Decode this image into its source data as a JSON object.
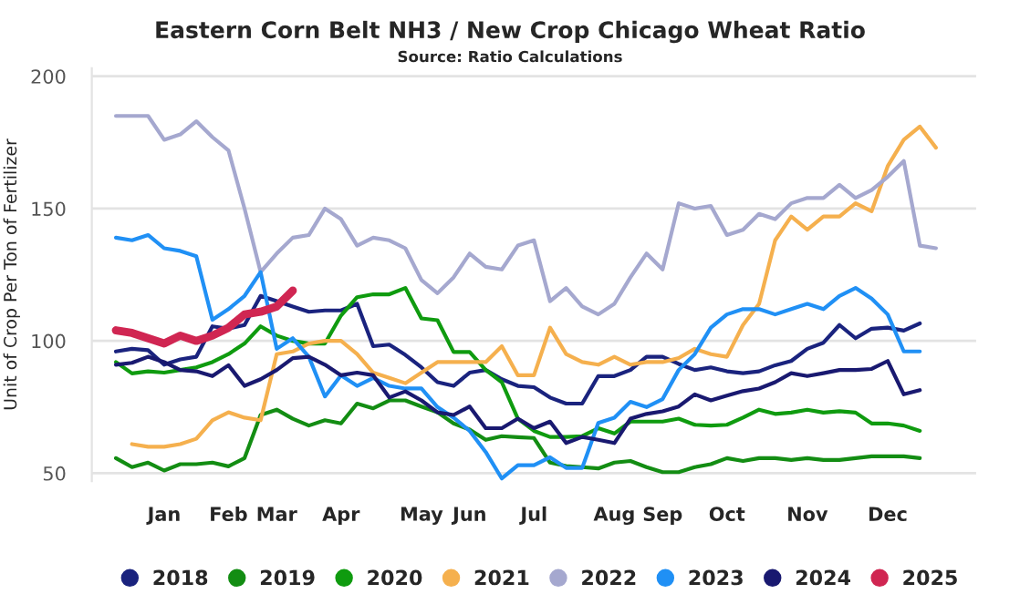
{
  "chart_data": {
    "type": "line",
    "title": "Eastern Corn Belt NH3 / New Crop Chicago Wheat Ratio",
    "subtitle": "Source: Ratio Calculations",
    "ylabel": "Unit of Crop Per Ton of Fertilizer",
    "categories": [
      null,
      null,
      null,
      "Jan",
      null,
      null,
      null,
      "Feb",
      null,
      null,
      "Mar",
      null,
      null,
      null,
      "Apr",
      null,
      null,
      null,
      null,
      "May",
      null,
      null,
      "Jun",
      null,
      null,
      null,
      "Jul",
      null,
      null,
      null,
      null,
      "Aug",
      null,
      null,
      "Sep",
      null,
      null,
      null,
      "Oct",
      null,
      null,
      null,
      null,
      "Nov",
      null,
      null,
      null,
      null,
      "Dec",
      null,
      null,
      null
    ],
    "series": [
      {
        "name": "2018",
        "color": "#1a237e",
        "values": [
          96,
          97,
          96.5,
          91,
          93,
          94,
          105.5,
          104.6,
          106,
          117,
          115,
          113,
          111,
          111.5,
          111.5,
          114,
          98,
          98.6,
          94.7,
          90,
          84.4,
          83,
          88,
          89,
          85.5,
          83,
          82.5,
          78.6,
          76.3,
          76.3,
          86.7,
          86.7,
          89,
          94,
          94,
          91.3,
          89,
          90,
          88.5,
          87.8,
          88.5,
          90.8,
          92.4,
          97,
          99.3,
          106,
          101,
          104.6,
          105,
          103.9,
          106.6,
          null
        ]
      },
      {
        "name": "2019",
        "color": "#138d13",
        "values": [
          55.7,
          52.3,
          54,
          51,
          53.4,
          53.4,
          54,
          52.6,
          55.7,
          72,
          74,
          70.6,
          68,
          70,
          68.8,
          76.3,
          74.5,
          77.5,
          77.5,
          75.2,
          73,
          68.8,
          66.5,
          62.6,
          64,
          63.6,
          63.3,
          54,
          52.7,
          52.3,
          51.8,
          54,
          54.6,
          52.3,
          50.4,
          50.4,
          52.3,
          53.4,
          55.7,
          54.6,
          55.7,
          55.7,
          55,
          55.7,
          55,
          55,
          55.7,
          56.4,
          56.4,
          56.4,
          55.7,
          null
        ]
      },
      {
        "name": "2020",
        "color": "#0f9b0f",
        "values": [
          92,
          87.7,
          88.5,
          88,
          89,
          90,
          92,
          95,
          99,
          105.5,
          102,
          100,
          99,
          99,
          109.6,
          116.5,
          117.6,
          117.6,
          120,
          108.5,
          107.8,
          95.8,
          95.8,
          89,
          84.4,
          70.6,
          66,
          63.7,
          63.7,
          64,
          67,
          65,
          69.5,
          69.5,
          69.5,
          70.6,
          68.3,
          68,
          68.3,
          71,
          74,
          72.4,
          72.9,
          74,
          72.9,
          73.4,
          72.9,
          68.8,
          68.8,
          68,
          66,
          null
        ]
      },
      {
        "name": "2021",
        "color": "#f5b04e",
        "values": [
          null,
          61,
          60,
          60,
          61,
          63,
          70,
          73,
          71,
          70,
          95,
          96,
          99,
          100,
          100,
          95,
          88,
          86,
          84,
          88,
          92,
          92,
          92,
          92,
          98,
          87,
          87,
          105,
          95,
          92,
          91,
          94,
          91,
          92,
          92,
          93.5,
          97,
          95,
          94,
          106,
          114,
          138,
          147,
          142,
          147,
          147,
          152,
          149,
          166,
          176,
          181,
          173
        ]
      },
      {
        "name": "2022",
        "color": "#a5a8cf",
        "values": [
          185,
          185,
          185,
          176,
          178,
          183,
          177,
          172,
          150,
          126,
          133,
          139,
          140,
          150,
          146,
          136,
          139,
          138,
          135,
          123,
          118,
          124,
          133,
          128,
          127,
          136,
          138,
          115,
          120,
          113,
          110,
          114,
          124,
          133,
          127,
          152,
          150,
          151,
          140,
          142,
          148,
          146,
          152,
          154,
          154,
          159,
          154,
          157,
          162,
          168,
          136,
          135
        ]
      },
      {
        "name": "2023",
        "color": "#2090f5",
        "values": [
          139,
          138,
          140,
          135,
          134,
          132,
          108,
          112,
          117,
          126,
          97,
          101,
          94,
          79,
          87,
          83,
          86,
          83,
          82,
          82,
          75,
          71,
          66,
          58,
          48,
          53,
          53,
          56,
          52,
          52,
          69,
          71,
          77,
          75,
          78,
          89,
          95,
          105,
          110,
          112,
          112,
          110,
          112,
          114,
          112,
          117,
          120,
          116,
          110,
          96,
          96,
          null
        ]
      },
      {
        "name": "2024",
        "color": "#191970",
        "values": [
          91,
          91.7,
          94,
          92,
          89,
          88.5,
          86.7,
          90.8,
          83,
          85.5,
          89,
          93.5,
          94,
          91,
          87,
          88,
          87,
          78.6,
          80.9,
          77.5,
          73,
          72,
          75.2,
          67,
          67,
          70.6,
          67,
          69.5,
          61.4,
          63.7,
          62.6,
          61.4,
          70.6,
          72.4,
          73.4,
          75.2,
          79.8,
          77.5,
          79.3,
          81,
          82,
          84.4,
          87.8,
          86.7,
          87.8,
          89,
          89,
          89.4,
          92.4,
          79.8,
          81.4,
          null
        ]
      },
      {
        "name": "2025",
        "color": "#d02652",
        "values": [
          104,
          103,
          101,
          99,
          102,
          100,
          102,
          105,
          110,
          111,
          113,
          119,
          null,
          null,
          null,
          null,
          null,
          null,
          null,
          null,
          null,
          null,
          null,
          null,
          null,
          null,
          null,
          null,
          null,
          null,
          null,
          null,
          null,
          null,
          null,
          null,
          null,
          null,
          null,
          null,
          null,
          null,
          null,
          null,
          null,
          null,
          null,
          null,
          null,
          null,
          null,
          null
        ]
      }
    ],
    "ylim": [
      47,
      203
    ],
    "yticks": [
      50,
      100,
      150,
      200
    ],
    "grid": "y",
    "legend": "bottom"
  }
}
